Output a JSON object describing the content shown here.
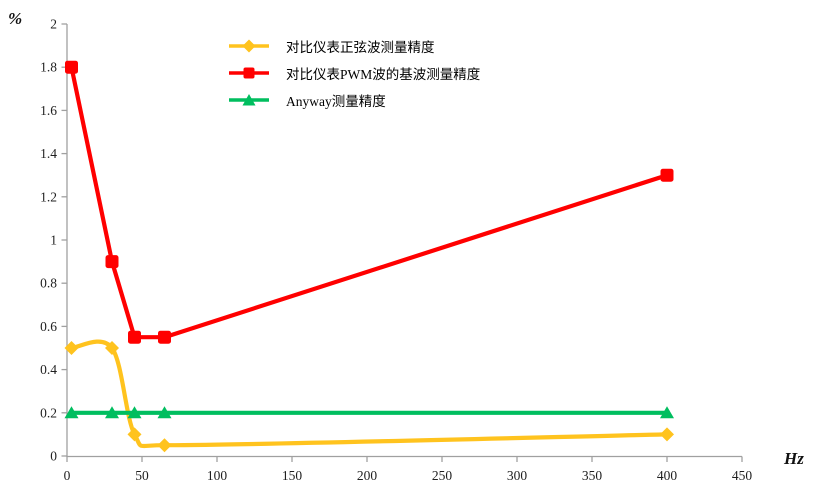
{
  "chart_data": {
    "type": "line",
    "x": [
      3,
      30,
      45,
      65,
      400
    ],
    "series": [
      {
        "name": "对比仪表正弦波测量精度",
        "color": "#FFC31E",
        "marker": "diamond",
        "smooth": true,
        "values": [
          0.5,
          0.5,
          0.1,
          0.05,
          0.1
        ]
      },
      {
        "name": "对比仪表PWM波的基波测量精度",
        "color": "#FF0000",
        "marker": "square",
        "smooth": false,
        "values": [
          1.8,
          0.9,
          0.55,
          0.55,
          1.3
        ]
      },
      {
        "name": "Anyway测量精度",
        "color": "#00BE5F",
        "marker": "triangle",
        "smooth": false,
        "values": [
          0.2,
          0.2,
          0.2,
          0.2,
          0.2
        ]
      }
    ],
    "xlabel": "Hz",
    "ylabel": "%",
    "xlim": [
      0,
      450
    ],
    "ylim": [
      0,
      2
    ],
    "x_ticks": [
      0,
      50,
      100,
      150,
      200,
      250,
      300,
      350,
      400,
      450
    ],
    "x_tick_labels": [
      "0",
      "50",
      "100",
      "150",
      "200",
      "250",
      "300",
      "350",
      "400",
      "450"
    ],
    "y_ticks": [
      0,
      0.2,
      0.4,
      0.6,
      0.8,
      1,
      1.2,
      1.4,
      1.6,
      1.8,
      2
    ],
    "y_tick_labels": [
      "0",
      "0.2",
      "0.4",
      "0.6",
      "0.8",
      "1",
      "1.2",
      "1.4",
      "1.6",
      "1.8",
      "2"
    ],
    "grid": false,
    "legend_position": "top-center",
    "axis_color": "#A0A0A0",
    "tick_label_color": "#1F1F1F",
    "background": "#FFFFFF"
  }
}
